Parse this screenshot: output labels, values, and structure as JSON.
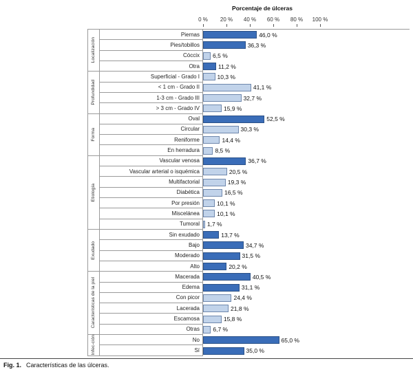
{
  "caption": {
    "label": "Fig. 1.",
    "text": "Características de las úlceras."
  },
  "chart_data": {
    "type": "bar",
    "orientation": "horizontal",
    "title": "Porcentaje de úlceras",
    "xlabel": "Porcentaje de úlceras",
    "xlim": [
      0,
      100
    ],
    "ticks": [
      "0 %",
      "20 %",
      "40 %",
      "60 %",
      "80 %",
      "100 %"
    ],
    "tick_values": [
      0,
      20,
      40,
      60,
      80,
      100
    ],
    "grid": false,
    "colors": {
      "dark": "#3a6db8",
      "light": "#c1d3ea"
    },
    "groups": [
      {
        "name": "Localización",
        "bars": [
          {
            "label": "Piernas",
            "value": 46.0,
            "display": "46,0 %",
            "color": "dark"
          },
          {
            "label": "Pies/tobillos",
            "value": 36.3,
            "display": "36,3 %",
            "color": "dark"
          },
          {
            "label": "Cóccix",
            "value": 6.5,
            "display": "6,5 %",
            "color": "light"
          },
          {
            "label": "Otra",
            "value": 11.2,
            "display": "11,2 %",
            "color": "dark"
          }
        ]
      },
      {
        "name": "Profundidad",
        "bars": [
          {
            "label": "Superficial - Grado I",
            "value": 10.3,
            "display": "10,3 %",
            "color": "light"
          },
          {
            "label": "< 1 cm - Grado II",
            "value": 41.1,
            "display": "41,1 %",
            "color": "light"
          },
          {
            "label": "1-3 cm - Grado III",
            "value": 32.7,
            "display": "32,7 %",
            "color": "light"
          },
          {
            "label": "> 3 cm - Grado IV",
            "value": 15.9,
            "display": "15,9 %",
            "color": "light"
          }
        ]
      },
      {
        "name": "Forma",
        "bars": [
          {
            "label": "Oval",
            "value": 52.5,
            "display": "52,5 %",
            "color": "dark"
          },
          {
            "label": "Circular",
            "value": 30.3,
            "display": "30,3 %",
            "color": "light"
          },
          {
            "label": "Reniforme",
            "value": 14.4,
            "display": "14,4 %",
            "color": "light"
          },
          {
            "label": "En herradura",
            "value": 8.5,
            "display": "8,5 %",
            "color": "light"
          }
        ]
      },
      {
        "name": "Etiología",
        "bars": [
          {
            "label": "Vascular venosa",
            "value": 36.7,
            "display": "36,7 %",
            "color": "dark"
          },
          {
            "label": "Vascular arterial o isquémica",
            "value": 20.5,
            "display": "20,5 %",
            "color": "light"
          },
          {
            "label": "Multifactorial",
            "value": 19.3,
            "display": "19,3 %",
            "color": "light"
          },
          {
            "label": "Diabética",
            "value": 16.5,
            "display": "16,5 %",
            "color": "light"
          },
          {
            "label": "Por presión",
            "value": 10.1,
            "display": "10,1 %",
            "color": "light"
          },
          {
            "label": "Miscelánea",
            "value": 10.1,
            "display": "10,1 %",
            "color": "light"
          },
          {
            "label": "Tumoral",
            "value": 1.7,
            "display": "1,7 %",
            "color": "light"
          }
        ]
      },
      {
        "name": "Exudado",
        "bars": [
          {
            "label": "Sin exudado",
            "value": 13.7,
            "display": "13,7 %",
            "color": "dark"
          },
          {
            "label": "Bajo",
            "value": 34.7,
            "display": "34,7 %",
            "color": "dark"
          },
          {
            "label": "Moderado",
            "value": 31.5,
            "display": "31,5 %",
            "color": "dark"
          },
          {
            "label": "Alto",
            "value": 20.2,
            "display": "20,2 %",
            "color": "dark"
          }
        ]
      },
      {
        "name": "Características de la piel",
        "bars": [
          {
            "label": "Macerada",
            "value": 40.5,
            "display": "40,5 %",
            "color": "dark"
          },
          {
            "label": "Edema",
            "value": 31.1,
            "display": "31,1 %",
            "color": "dark"
          },
          {
            "label": "Con picor",
            "value": 24.4,
            "display": "24,4 %",
            "color": "light"
          },
          {
            "label": "Lacerada",
            "value": 21.8,
            "display": "21,8 %",
            "color": "light"
          },
          {
            "label": "Escamosa",
            "value": 15.8,
            "display": "15,8 %",
            "color": "light"
          },
          {
            "label": "Otras",
            "value": 6.7,
            "display": "6,7 %",
            "color": "light"
          }
        ]
      },
      {
        "name": "Infec-ción",
        "bars": [
          {
            "label": "No",
            "value": 65.0,
            "display": "65,0 %",
            "color": "dark"
          },
          {
            "label": "Sí",
            "value": 35.0,
            "display": "35,0 %",
            "color": "dark"
          }
        ]
      }
    ]
  }
}
